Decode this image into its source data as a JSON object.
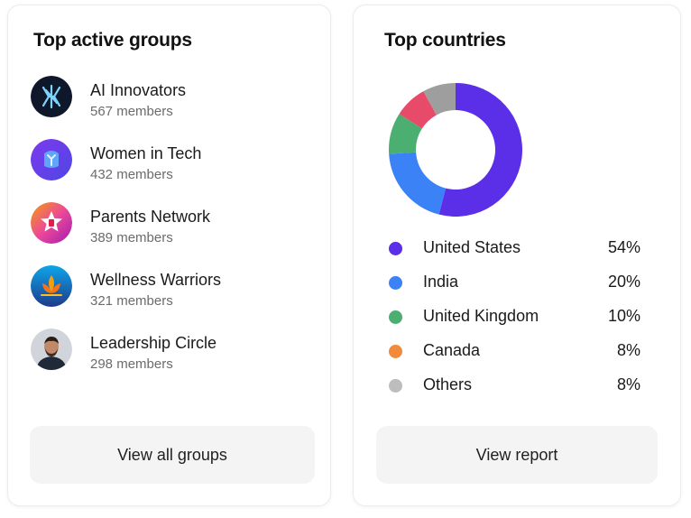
{
  "groups_card": {
    "title": "Top active groups",
    "groups": [
      {
        "name": "AI Innovators",
        "members": "567 members",
        "icon": "ai-logo-icon",
        "color": "#0f172a"
      },
      {
        "name": "Women in Tech",
        "members": "432 members",
        "icon": "women-tech-icon",
        "color": "#6d28d9"
      },
      {
        "name": "Parents Network",
        "members": "389 members",
        "icon": "star-badge-icon",
        "color": "#e11d48"
      },
      {
        "name": "Wellness Warriors",
        "members": "321 members",
        "icon": "lotus-icon",
        "color": "#1e3a8a"
      },
      {
        "name": "Leadership Circle",
        "members": "298 members",
        "icon": "person-photo-icon",
        "color": "#374151"
      }
    ],
    "button_label": "View all groups"
  },
  "countries_card": {
    "title": "Top countries",
    "button_label": "View report"
  },
  "chart_data": {
    "type": "pie",
    "donut": true,
    "categories": [
      "United States",
      "India",
      "United Kingdom",
      "Canada",
      "Others"
    ],
    "labels": [
      "54%",
      "20%",
      "10%",
      "8%",
      "8%"
    ],
    "values": [
      54,
      20,
      10,
      8,
      8
    ],
    "colors": [
      "#5b2ee8",
      "#3b82f6",
      "#4caf72",
      "#e84a6a",
      "#9e9e9e"
    ],
    "legend_colors": [
      "#5b2ee8",
      "#3b82f6",
      "#4caf72",
      "#f28a3c",
      "#bdbdbd"
    ],
    "legend": "bottom"
  }
}
